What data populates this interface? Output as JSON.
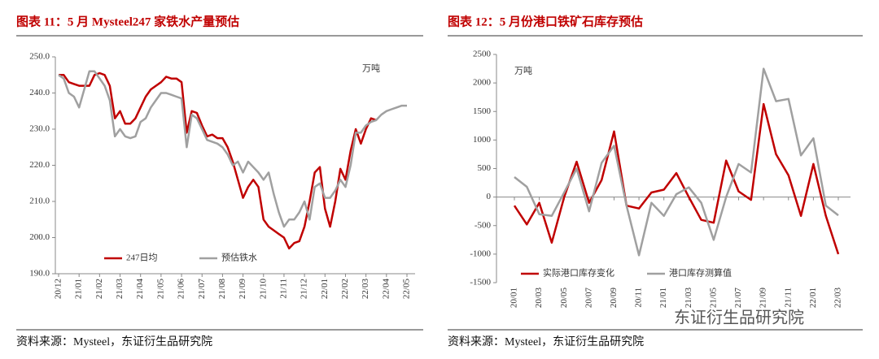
{
  "chart_data": [
    {
      "type": "line",
      "title": "图表 11：5 月 Mysteel247 家铁水产量预估",
      "unit": "万吨",
      "source": "资料来源：Mysteel，东证衍生品研究院",
      "categories": [
        "20/12",
        null,
        null,
        null,
        "21/01",
        null,
        null,
        null,
        "21/02",
        null,
        null,
        null,
        "21/03",
        null,
        null,
        null,
        "21/04",
        null,
        null,
        null,
        "21/05",
        null,
        null,
        null,
        "21/06",
        null,
        null,
        null,
        "21/07",
        null,
        null,
        null,
        "21/08",
        null,
        null,
        null,
        "21/09",
        null,
        null,
        null,
        "21/10",
        null,
        null,
        null,
        "21/11",
        null,
        null,
        null,
        "21/12",
        null,
        null,
        null,
        "22/01",
        null,
        null,
        null,
        "22/02",
        null,
        null,
        null,
        "22/03",
        null,
        null,
        null,
        "22/04",
        null,
        null,
        null,
        "22/05"
      ],
      "series": [
        {
          "name": "247日均",
          "color": "#c00000",
          "values": [
            245,
            245,
            243,
            242.5,
            242,
            242,
            242,
            245,
            245.5,
            245,
            242,
            233,
            235,
            231.5,
            231.5,
            233,
            236,
            239,
            241,
            242,
            243,
            244.5,
            244,
            244,
            243,
            229,
            235,
            234.5,
            231,
            228,
            228.5,
            227.5,
            227.5,
            225,
            221,
            216,
            211,
            214,
            216,
            214,
            205,
            203,
            202,
            201,
            200,
            197,
            198.5,
            199,
            203,
            210,
            218,
            219.5,
            208,
            203,
            210,
            219,
            216,
            224,
            230,
            226,
            230,
            233,
            232.5,
            null,
            null,
            null,
            null,
            null,
            null
          ]
        },
        {
          "name": "预估铁水",
          "color": "#a0a0a0",
          "values": [
            245,
            244,
            240,
            239,
            236,
            241,
            246,
            246,
            244,
            242,
            238,
            228,
            230,
            228,
            227.5,
            228,
            232,
            233,
            236,
            238,
            240,
            240,
            239.5,
            239,
            238.5,
            225,
            234,
            233,
            230,
            227,
            226.5,
            226,
            225,
            223,
            220,
            221,
            218,
            221,
            219.5,
            218,
            216,
            218,
            212,
            207,
            203,
            205,
            205,
            207,
            210,
            205,
            214,
            215,
            211,
            211,
            213,
            216,
            214,
            220,
            229,
            229,
            231,
            232,
            232.5,
            234,
            235,
            235.5,
            236,
            236.5,
            236.5
          ]
        }
      ],
      "ylim": [
        190,
        250
      ],
      "yticks": [
        {
          "value": 190,
          "label": "190.0"
        },
        {
          "value": 200,
          "label": "200.0"
        },
        {
          "value": 210,
          "label": "210.0"
        },
        {
          "value": 220,
          "label": "220.0"
        },
        {
          "value": 230,
          "label": "230.0"
        },
        {
          "value": 240,
          "label": "240.0"
        },
        {
          "value": 250,
          "label": "250.0"
        }
      ],
      "legend": "bottom-left"
    },
    {
      "type": "line",
      "title": "图表 12：5 月份港口铁矿石库存预估",
      "unit": "万吨",
      "source": "资料来源：Mysteel，东证衍生品研究院",
      "categories": [
        "20/01",
        null,
        "20/03",
        null,
        "20/05",
        null,
        "20/07",
        null,
        "20/09",
        null,
        "20/11",
        null,
        "21/01",
        null,
        "21/03",
        null,
        "21/05",
        null,
        "21/07",
        null,
        "21/09",
        null,
        "21/11",
        null,
        "22/01",
        null,
        "22/03"
      ],
      "series": [
        {
          "name": "实际港口库存变化",
          "color": "#c00000",
          "values": [
            -150,
            -480,
            -100,
            -800,
            0,
            620,
            -100,
            300,
            1150,
            -150,
            -200,
            80,
            130,
            420,
            0,
            -400,
            -450,
            640,
            100,
            -50,
            1630,
            750,
            380,
            -330,
            580,
            -330,
            -1000
          ]
        },
        {
          "name": "港口库存测算值",
          "color": "#a0a0a0",
          "values": [
            350,
            180,
            -300,
            -330,
            80,
            500,
            -250,
            600,
            900,
            -150,
            -1020,
            -100,
            -330,
            50,
            170,
            -100,
            -750,
            0,
            580,
            430,
            2250,
            1680,
            1720,
            730,
            1030,
            -150,
            -320
          ]
        }
      ],
      "ylim": [
        -1500,
        2500
      ],
      "yticks": [
        -1500,
        -1000,
        -500,
        0,
        500,
        1000,
        1500,
        2000,
        2500
      ],
      "legend": "bottom-left"
    }
  ],
  "watermark": "东证衍生品研究院"
}
